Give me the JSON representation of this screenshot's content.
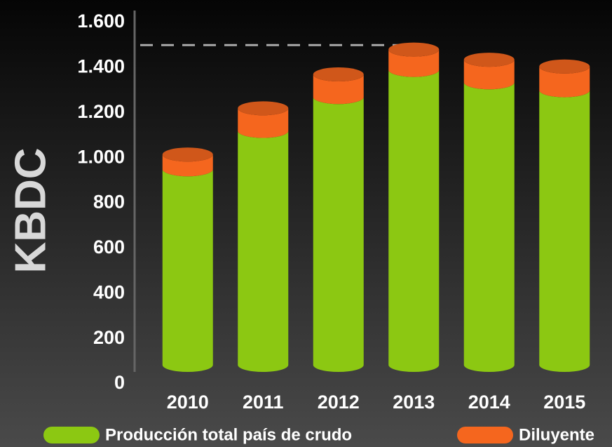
{
  "chart_data": {
    "type": "stacked_bar",
    "y_label": "KBDC",
    "categories": [
      "2010",
      "2011",
      "2012",
      "2013",
      "2014",
      "2015"
    ],
    "series": [
      {
        "name": "Producción total país de crudo",
        "color": "#8cc812",
        "values": [
          950,
          1120,
          1270,
          1390,
          1335,
          1300
        ]
      },
      {
        "name": "Diluyente",
        "color": "#f5661e",
        "values": [
          65,
          100,
          100,
          90,
          100,
          105
        ]
      }
    ],
    "reference_line": 1500,
    "ylim": [
      0,
      1600
    ],
    "yticks": [
      0,
      200,
      400,
      600,
      800,
      {
        "value": 1000,
        "label": "1.000"
      },
      {
        "value": 1200,
        "label": "1.200"
      },
      {
        "value": 1400,
        "label": "1.400"
      },
      {
        "value": 1600,
        "label": "1.600"
      }
    ]
  }
}
